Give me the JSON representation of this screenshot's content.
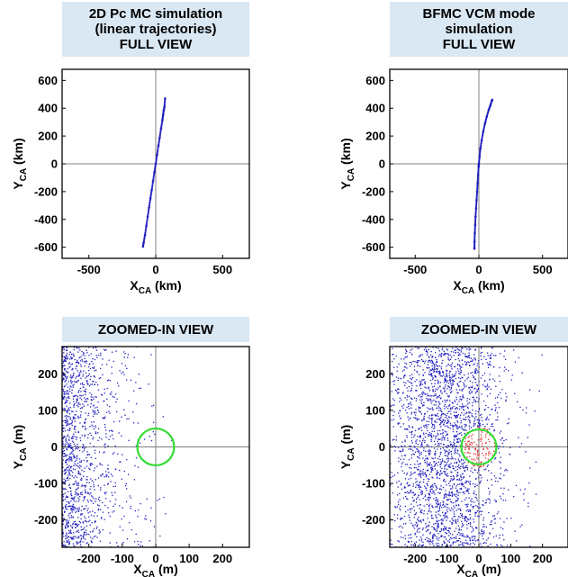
{
  "panels": [
    {
      "title_lines": [
        "2D Pc MC simulation",
        "(linear trajectories)",
        "FULL VIEW"
      ]
    },
    {
      "title_lines": [
        "BFMC VCM mode",
        "simulation",
        "FULL VIEW"
      ]
    },
    {
      "title_lines": [
        "ZOOMED-IN VIEW"
      ]
    },
    {
      "title_lines": [
        "ZOOMED-IN VIEW"
      ]
    }
  ],
  "chart_data": [
    {
      "type": "scatter",
      "title": "2D Pc MC simulation (linear trajectories) FULL VIEW",
      "xlabel": "X_CA (km)",
      "ylabel": "Y_CA (km)",
      "xlim": [
        -700,
        700
      ],
      "ylim": [
        -680,
        680
      ],
      "xticks": [
        -500,
        0,
        500
      ],
      "yticks": [
        -600,
        -400,
        -200,
        0,
        200,
        400,
        600
      ],
      "crosshair": true,
      "series": [
        {
          "color": "#1f1fbf",
          "points": [
            [
              -95,
              -595
            ],
            [
              -90,
              -565
            ],
            [
              -80,
              -510
            ],
            [
              -70,
              -445
            ],
            [
              -60,
              -380
            ],
            [
              -50,
              -315
            ],
            [
              -40,
              -250
            ],
            [
              -30,
              -190
            ],
            [
              -20,
              -125
            ],
            [
              -10,
              -60
            ],
            [
              0,
              0
            ],
            [
              10,
              65
            ],
            [
              20,
              130
            ],
            [
              30,
              190
            ],
            [
              40,
              255
            ],
            [
              50,
              315
            ],
            [
              55,
              350
            ],
            [
              60,
              385
            ],
            [
              65,
              410
            ],
            [
              70,
              470
            ]
          ]
        }
      ]
    },
    {
      "type": "scatter",
      "title": "BFMC VCM mode simulation FULL VIEW",
      "xlabel": "X_CA (km)",
      "ylabel": "Y_CA (km)",
      "xlim": [
        -700,
        700
      ],
      "ylim": [
        -680,
        680
      ],
      "xticks": [
        -500,
        0,
        500
      ],
      "yticks": [
        -600,
        -400,
        -200,
        0,
        200,
        400,
        600
      ],
      "crosshair": true,
      "series": [
        {
          "color": "#1f1fbf",
          "points": [
            [
              -35,
              -610
            ],
            [
              -34,
              -560
            ],
            [
              -32,
              -500
            ],
            [
              -29,
              -440
            ],
            [
              -26,
              -380
            ],
            [
              -22,
              -320
            ],
            [
              -18,
              -260
            ],
            [
              -14,
              -200
            ],
            [
              -10,
              -140
            ],
            [
              -6,
              -80
            ],
            [
              -2,
              -20
            ],
            [
              0,
              0
            ],
            [
              5,
              50
            ],
            [
              12,
              110
            ],
            [
              22,
              170
            ],
            [
              34,
              230
            ],
            [
              48,
              290
            ],
            [
              62,
              340
            ],
            [
              78,
              390
            ],
            [
              90,
              420
            ],
            [
              100,
              450
            ],
            [
              105,
              460
            ]
          ]
        }
      ]
    },
    {
      "type": "scatter",
      "title": "ZOOMED-IN VIEW",
      "xlabel": "X_CA (m)",
      "ylabel": "Y_CA (m)",
      "xlim": [
        -280,
        280
      ],
      "ylim": [
        -275,
        275
      ],
      "xticks": [
        -200,
        -100,
        0,
        100,
        200
      ],
      "yticks": [
        -200,
        -100,
        0,
        100,
        200
      ],
      "crosshair": true,
      "circle": {
        "cx": 0,
        "cy": 0,
        "r": 55,
        "color": "#33dd33"
      },
      "scatter_density": {
        "seed": 7,
        "count": 1300,
        "x_min": -280,
        "x_max": 60,
        "decay": 75,
        "y_min": -275,
        "y_max": 275,
        "color": "#1f1fbf"
      }
    },
    {
      "type": "scatter",
      "title": "ZOOMED-IN VIEW",
      "xlabel": "X_CA (m)",
      "ylabel": "Y_CA (m)",
      "xlim": [
        -280,
        280
      ],
      "ylim": [
        -275,
        275
      ],
      "xticks": [
        -200,
        -100,
        0,
        100,
        200
      ],
      "yticks": [
        -200,
        -100,
        0,
        100,
        200
      ],
      "crosshair": true,
      "circle": {
        "cx": 0,
        "cy": 0,
        "r": 55,
        "color": "#33dd33"
      },
      "scatter_density": {
        "seed": 19,
        "count": 2600,
        "x_min": -280,
        "x_max": 280,
        "center": -110,
        "spread": 95,
        "y_min": -275,
        "y_max": 275,
        "color": "#1f1fbf",
        "inside_color": "#dd3333"
      }
    }
  ]
}
